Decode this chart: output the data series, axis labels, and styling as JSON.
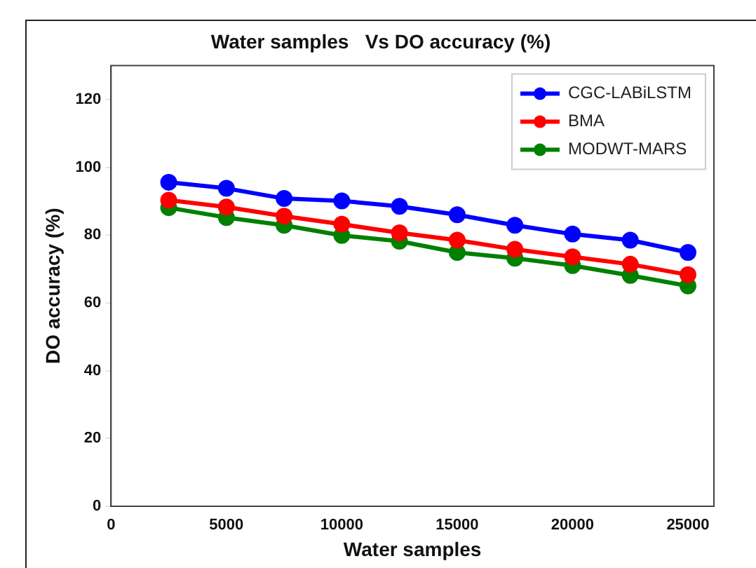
{
  "chart_data": {
    "type": "line",
    "title": "Water samples   Vs DO accuracy (%)",
    "xlabel": "Water samples",
    "ylabel": "DO accuracy (%)",
    "x": [
      2500,
      5000,
      7500,
      10000,
      12500,
      15000,
      17500,
      20000,
      22500,
      25000
    ],
    "series": [
      {
        "name": "CGC-LABiLSTM",
        "color": "#0000ff",
        "values": [
          95.6,
          93.8,
          90.8,
          90.1,
          88.5,
          86,
          82.9,
          80.3,
          78.5,
          74.9
        ]
      },
      {
        "name": "BMA",
        "color": "#ff0000",
        "values": [
          90.3,
          88.3,
          85.6,
          83.2,
          80.7,
          78.5,
          75.8,
          73.6,
          71.4,
          68.3
        ]
      },
      {
        "name": "MODWT-MARS",
        "color": "#008000",
        "values": [
          88.1,
          85.2,
          82.9,
          79.9,
          78.2,
          74.9,
          73.2,
          71,
          68.1,
          65
        ]
      }
    ],
    "xlim": [
      0,
      26125
    ],
    "xticks": [
      0,
      5000,
      10000,
      15000,
      20000,
      25000
    ],
    "ylim": [
      0,
      130
    ],
    "yticks": [
      0,
      20,
      40,
      60,
      80,
      100,
      120
    ],
    "grid": false,
    "legend": "top right",
    "marker": "circle",
    "line_style": "solid"
  }
}
